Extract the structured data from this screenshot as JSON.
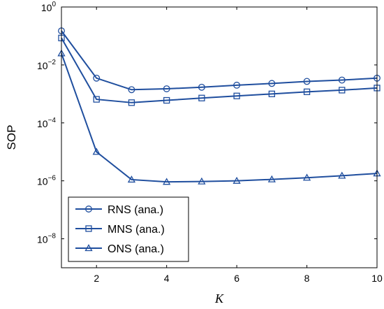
{
  "chart_data": {
    "type": "line",
    "xlabel": "K",
    "ylabel": "SOP",
    "xlim": [
      1,
      10
    ],
    "ylim": [
      1e-09,
      1
    ],
    "yscale": "log",
    "grid": false,
    "legend_position": "bottom-left",
    "x_ticks": [
      2,
      4,
      6,
      8,
      10
    ],
    "y_ticks": [
      {
        "base": "10",
        "exp": "0",
        "value": 1
      },
      {
        "base": "10",
        "exp": "−2",
        "value": 0.01
      },
      {
        "base": "10",
        "exp": "−4",
        "value": 0.0001
      },
      {
        "base": "10",
        "exp": "−6",
        "value": 1e-06
      },
      {
        "base": "10",
        "exp": "−8",
        "value": 1e-08
      }
    ],
    "x": [
      1,
      2,
      3,
      4,
      5,
      6,
      7,
      8,
      9,
      10
    ],
    "series": [
      {
        "name": "RNS (ana.)",
        "marker": "circle",
        "color": "#1f4e9e",
        "values": [
          0.15,
          0.0035,
          0.0014,
          0.0015,
          0.0017,
          0.002,
          0.0023,
          0.0027,
          0.003,
          0.0035
        ]
      },
      {
        "name": "MNS (ana.)",
        "marker": "square",
        "color": "#1f4e9e",
        "values": [
          0.085,
          0.00065,
          0.0005,
          0.0006,
          0.00072,
          0.00085,
          0.001,
          0.00118,
          0.00135,
          0.0016
        ]
      },
      {
        "name": "ONS (ana.)",
        "marker": "triangle",
        "color": "#1f4e9e",
        "values": [
          0.025,
          1e-05,
          1.1e-06,
          9.2e-07,
          9.5e-07,
          1e-06,
          1.12e-06,
          1.28e-06,
          1.5e-06,
          1.8e-06
        ]
      }
    ]
  }
}
